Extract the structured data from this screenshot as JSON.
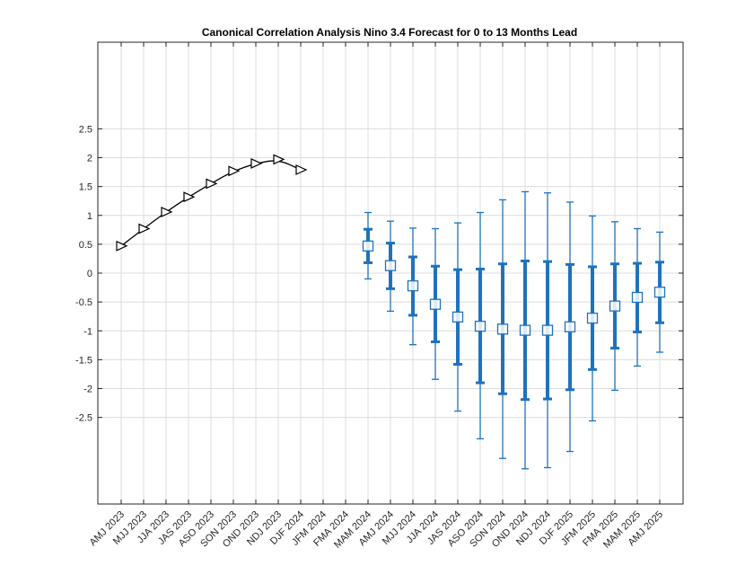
{
  "chart_data": {
    "type": "line",
    "title": "Canonical Correlation Analysis Nino 3.4 Forecast for 0 to 13 Months Lead",
    "xlabel": "",
    "ylabel": "",
    "categories": [
      "AMJ 2023",
      "MJJ 2023",
      "JJA 2023",
      "JAS 2023",
      "ASO 2023",
      "SON 2023",
      "OND 2023",
      "NDJ 2023",
      "DJF 2024",
      "JFM 2024",
      "FMA 2024",
      "MAM 2024",
      "AMJ 2024",
      "MJJ 2024",
      "JJA 2024",
      "JAS 2024",
      "ASO 2024",
      "SON 2024",
      "OND 2024",
      "NDJ 2024",
      "DJF 2025",
      "JFM 2025",
      "FMA 2025",
      "MAM 2025",
      "AMJ 2025"
    ],
    "yticks": [
      "2.5",
      "2",
      "1.5",
      "1",
      "0.5",
      "0",
      "-0.5",
      "-1",
      "-1.5",
      "-2",
      "-2.5"
    ],
    "yticks_values": [
      2.5,
      2,
      1.5,
      1,
      0.5,
      0,
      -0.5,
      -1,
      -1.5,
      -2,
      -2.5
    ],
    "ylim": [
      -4.0,
      4.0
    ],
    "grid": true,
    "series": [
      {
        "name": "",
        "kind": "observed",
        "marker": "triangle-right",
        "color": "#000000",
        "points": [
          {
            "x": "AMJ 2023",
            "y": 0.47
          },
          {
            "x": "MJJ 2023",
            "y": 0.77
          },
          {
            "x": "JJA 2023",
            "y": 1.06
          },
          {
            "x": "JAS 2023",
            "y": 1.32
          },
          {
            "x": "ASO 2023",
            "y": 1.55
          },
          {
            "x": "SON 2023",
            "y": 1.77
          },
          {
            "x": "OND 2023",
            "y": 1.9
          },
          {
            "x": "NDJ 2023",
            "y": 1.97
          },
          {
            "x": "DJF 2024",
            "y": 1.79
          }
        ]
      },
      {
        "name": "",
        "kind": "forecast",
        "marker": "square",
        "color": "#1f72bd",
        "points": [
          {
            "x": "MAM 2024",
            "y": 0.47,
            "inner": [
              0.18,
              0.76
            ],
            "outer": [
              -0.1,
              1.05
            ]
          },
          {
            "x": "AMJ 2024",
            "y": 0.13,
            "inner": [
              -0.27,
              0.52
            ],
            "outer": [
              -0.66,
              0.9
            ]
          },
          {
            "x": "MJJ 2024",
            "y": -0.22,
            "inner": [
              -0.73,
              0.28
            ],
            "outer": [
              -1.24,
              0.78
            ]
          },
          {
            "x": "JJA 2024",
            "y": -0.54,
            "inner": [
              -1.19,
              0.12
            ],
            "outer": [
              -1.84,
              0.77
            ]
          },
          {
            "x": "JAS 2024",
            "y": -0.76,
            "inner": [
              -1.58,
              0.06
            ],
            "outer": [
              -2.39,
              0.87
            ]
          },
          {
            "x": "ASO 2024",
            "y": -0.92,
            "inner": [
              -1.9,
              0.07
            ],
            "outer": [
              -2.87,
              1.05
            ]
          },
          {
            "x": "SON 2024",
            "y": -0.97,
            "inner": [
              -2.09,
              0.16
            ],
            "outer": [
              -3.21,
              1.27
            ]
          },
          {
            "x": "OND 2024",
            "y": -0.99,
            "inner": [
              -2.19,
              0.21
            ],
            "outer": [
              -3.39,
              1.41
            ]
          },
          {
            "x": "NDJ 2024",
            "y": -0.99,
            "inner": [
              -2.18,
              0.2
            ],
            "outer": [
              -3.37,
              1.39
            ]
          },
          {
            "x": "DJF 2025",
            "y": -0.93,
            "inner": [
              -2.02,
              0.15
            ],
            "outer": [
              -3.09,
              1.23
            ]
          },
          {
            "x": "JFM 2025",
            "y": -0.78,
            "inner": [
              -1.67,
              0.11
            ],
            "outer": [
              -2.56,
              0.99
            ]
          },
          {
            "x": "FMA 2025",
            "y": -0.57,
            "inner": [
              -1.3,
              0.16
            ],
            "outer": [
              -2.03,
              0.89
            ]
          },
          {
            "x": "MAM 2025",
            "y": -0.42,
            "inner": [
              -1.02,
              0.17
            ],
            "outer": [
              -1.61,
              0.77
            ]
          },
          {
            "x": "AMJ 2025",
            "y": -0.33,
            "inner": [
              -0.86,
              0.19
            ],
            "outer": [
              -1.37,
              0.71
            ]
          }
        ]
      }
    ]
  }
}
